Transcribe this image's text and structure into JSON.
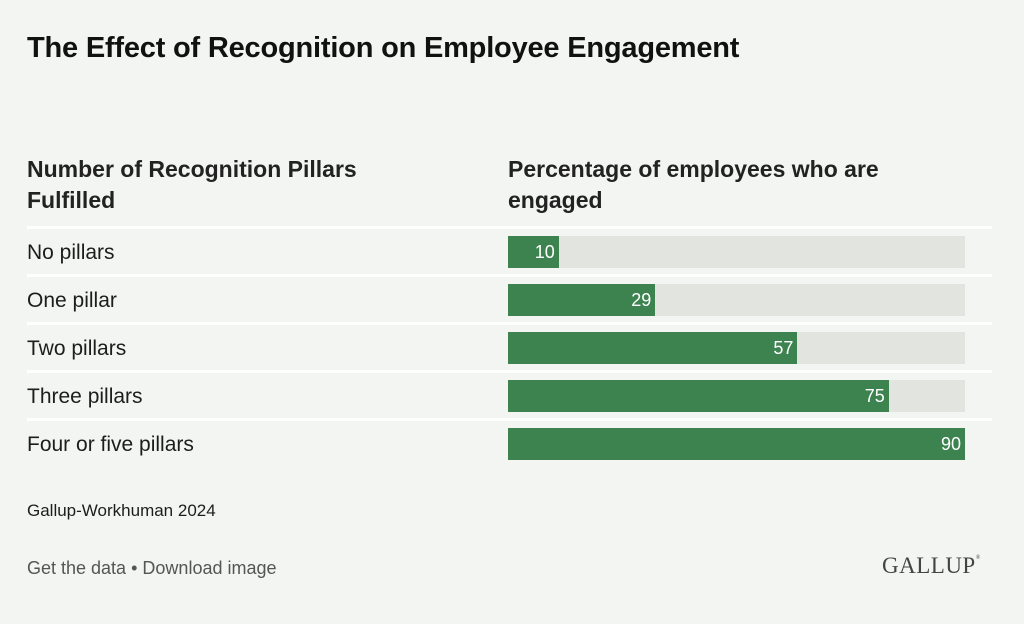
{
  "title": "The Effect of Recognition on Employee Engagement",
  "columns": {
    "left": "Number of Recognition Pillars Fulfilled",
    "right": "Percentage of employees who are engaged"
  },
  "source": "Gallup-Workhuman 2024",
  "links": {
    "get_data": "Get the data",
    "separator": "•",
    "download": "Download image"
  },
  "logo": {
    "text": "GALLUP",
    "mark": "®"
  },
  "colors": {
    "bar": "#3d8350",
    "track": "#e1e4df",
    "background": "#f2f5f1"
  },
  "chart_data": {
    "type": "bar",
    "orientation": "horizontal",
    "title": "The Effect of Recognition on Employee Engagement",
    "xlabel": "Percentage of employees who are engaged",
    "ylabel": "Number of Recognition Pillars Fulfilled",
    "categories": [
      "No pillars",
      "One pillar",
      "Two pillars",
      "Three pillars",
      "Four or five pillars"
    ],
    "values": [
      10,
      29,
      57,
      75,
      90
    ],
    "value_labels": [
      "10",
      "29",
      "57",
      "75",
      "90"
    ],
    "xlim": [
      0,
      90
    ],
    "grid": false,
    "legend": "none",
    "source": "Gallup-Workhuman 2024"
  }
}
